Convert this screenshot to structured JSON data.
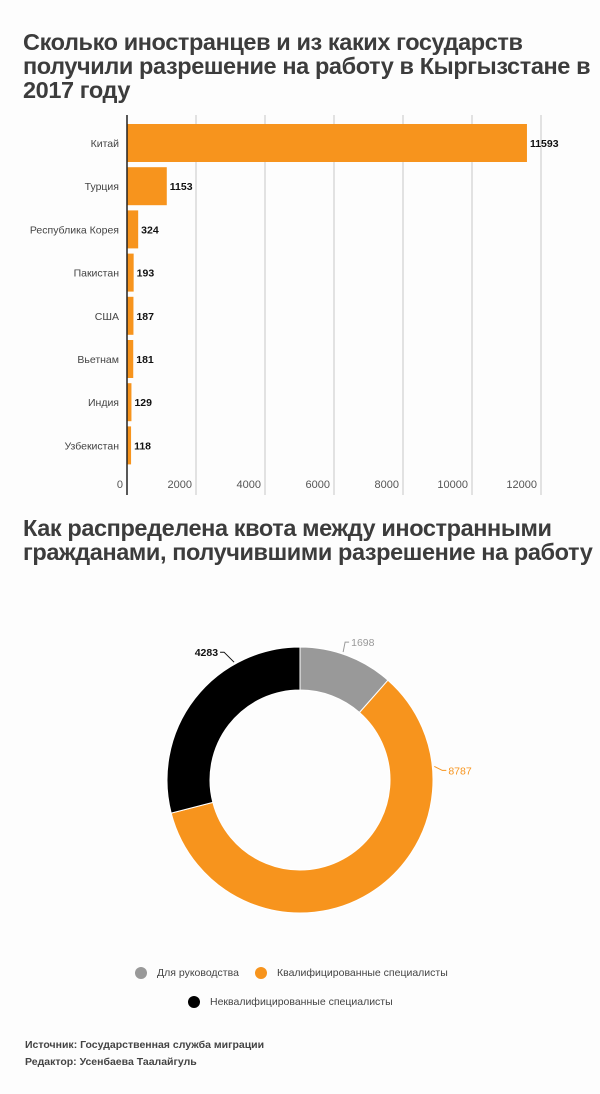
{
  "colors": {
    "orange": "#f7941d",
    "gray": "#999999",
    "black": "#000000",
    "text": "#3c3c3c"
  },
  "chart_data": [
    {
      "type": "bar",
      "orientation": "horizontal",
      "title": "Сколько иностранцев и из каких государств получили разрешение на работу в Кыргызстане в 2017 году",
      "categories": [
        "Китай",
        "Турция",
        "Республика Корея",
        "Пакистан",
        "США",
        "Вьетнам",
        "Индия",
        "Узбекистан"
      ],
      "values": [
        11593,
        1153,
        324,
        193,
        187,
        181,
        129,
        118
      ],
      "value_labels": [
        "11593",
        "1153",
        "324",
        "193",
        "187",
        "181",
        "129",
        "118"
      ],
      "xticks": [
        0,
        2000,
        4000,
        6000,
        8000,
        10000,
        12000
      ],
      "xtick_labels": [
        "0",
        "2000",
        "4000",
        "6000",
        "8000",
        "10000",
        "12000"
      ],
      "xlim": [
        0,
        12000
      ],
      "grid": true,
      "xlabel": "",
      "ylabel": ""
    },
    {
      "type": "pie",
      "donut": true,
      "title": "Как распределена квота между иностранными гражданами, получившими разрешение на работу",
      "slices": [
        {
          "label": "Для руководства",
          "value": 1698,
          "value_label": "1698",
          "color": "#999999"
        },
        {
          "label": "Квалифицированные специалисты",
          "value": 8787,
          "value_label": "8787",
          "color": "#f7941d"
        },
        {
          "label": "Неквалифицированные специалисты",
          "value": 4283,
          "value_label": "4283",
          "color": "#000000"
        }
      ],
      "legend_position": "bottom"
    }
  ],
  "footer": {
    "source": "Источник: Государственная служба миграции",
    "editor": "Редактор: Усенбаева Таалайгуль"
  }
}
